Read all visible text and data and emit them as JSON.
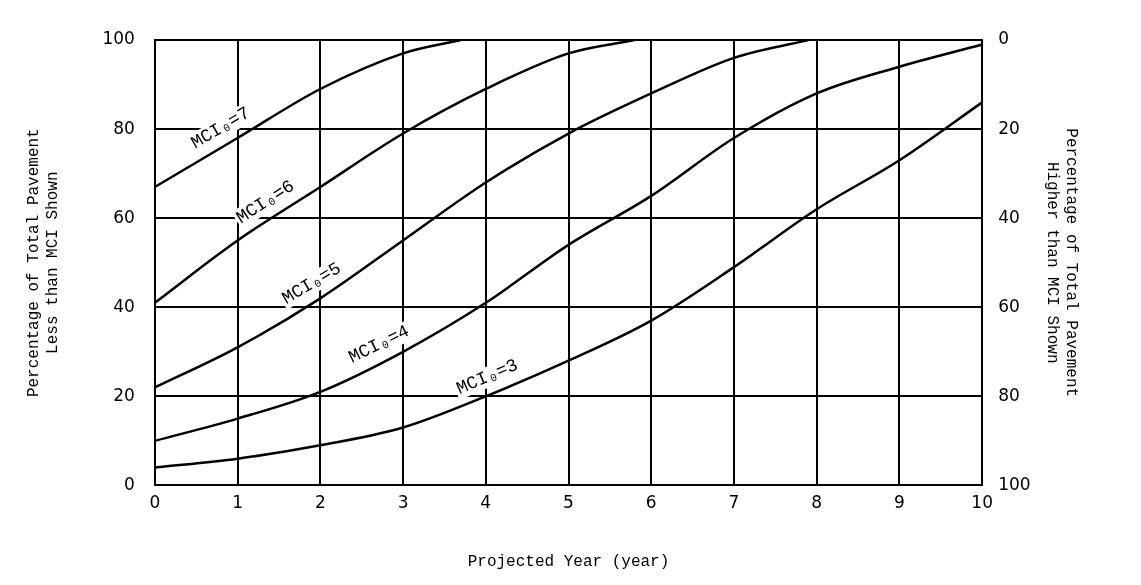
{
  "chart_data": {
    "type": "line",
    "xlabel": "Projected Year (year)",
    "ylabel": "Percentage of Total Pavement\nLess than MCI Shown",
    "y2label": "Percentage of Total Pavement\nHigher than MCI Shown",
    "xlim": [
      0,
      10
    ],
    "xticks": [
      0,
      1,
      2,
      3,
      4,
      5,
      6,
      7,
      8,
      9,
      10
    ],
    "ylim": [
      0,
      100
    ],
    "yticks": [
      0,
      20,
      40,
      60,
      80,
      100
    ],
    "y2lim": [
      100,
      0
    ],
    "y2ticks": [
      0,
      20,
      40,
      60,
      80,
      100
    ],
    "series": [
      {
        "name": "MCI₀=7",
        "color": "#000000",
        "x": [
          0,
          1,
          2,
          3,
          3.7
        ],
        "values": [
          67,
          78,
          89,
          97,
          100
        ]
      },
      {
        "name": "MCI₀=6",
        "color": "#000000",
        "x": [
          0,
          1,
          2,
          3,
          4,
          5,
          5.8
        ],
        "values": [
          41,
          55,
          67,
          79,
          89,
          97,
          100
        ]
      },
      {
        "name": "MCI₀=5",
        "color": "#000000",
        "x": [
          0,
          1,
          2,
          3,
          4,
          5,
          6,
          7,
          7.9
        ],
        "values": [
          22,
          31,
          42,
          55,
          68,
          79,
          88,
          96,
          100
        ]
      },
      {
        "name": "MCI₀=4",
        "color": "#000000",
        "x": [
          0,
          1,
          2,
          3,
          4,
          5,
          6,
          7,
          8,
          9,
          10
        ],
        "values": [
          10,
          15,
          21,
          30,
          41,
          54,
          65,
          78,
          88,
          94,
          99
        ]
      },
      {
        "name": "MCI₀=3",
        "color": "#000000",
        "x": [
          0,
          1,
          2,
          3,
          4,
          5,
          6,
          7,
          8,
          9,
          10
        ],
        "values": [
          4,
          6,
          9,
          13,
          20,
          28,
          37,
          49,
          62,
          73,
          86
        ]
      }
    ],
    "grid": true,
    "legend": false,
    "marker": "none",
    "line_style": "solid"
  }
}
